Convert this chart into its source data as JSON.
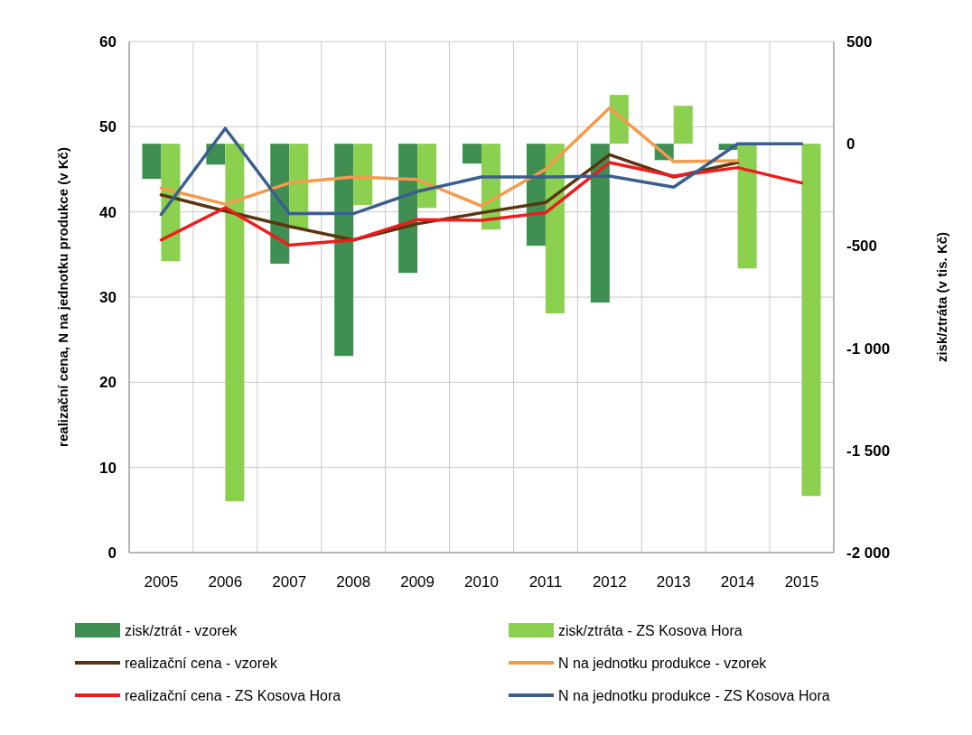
{
  "chart_data": {
    "type": "bar",
    "categories": [
      "2005",
      "2006",
      "2007",
      "2008",
      "2009",
      "2010",
      "2011",
      "2012",
      "2013",
      "2014",
      "2015"
    ],
    "ylabel": "realizační cena, N na jednotku produkce  (v Kč)",
    "y2label": "zisk/ztráta (v tis. Kč)",
    "ylim": [
      0,
      60
    ],
    "yticks": [
      0,
      10,
      20,
      30,
      40,
      50,
      60
    ],
    "y2lim": [
      -2000,
      500
    ],
    "y2ticks": [
      {
        "value": -2000,
        "label": "-2 000"
      },
      {
        "value": -1500,
        "label": "-1 500"
      },
      {
        "value": -1000,
        "label": "-1 000"
      },
      {
        "value": -500,
        "label": "-500"
      },
      0,
      500
    ],
    "grid": true,
    "legend": "bottom",
    "series": [
      {
        "name": "zisk/ztrát - vzorek",
        "axis": "y2",
        "color": "#3f8f52",
        "values": [
          -172,
          -102,
          -587,
          -1038,
          -632,
          -97,
          -499,
          -777,
          -80,
          -30,
          null
        ]
      },
      {
        "name": "zisk/ztráta - ZS Kosova  Hora",
        "axis": "y2",
        "color": "#8cd050",
        "values": [
          -574,
          -1749,
          -415,
          -300,
          -314,
          -420,
          -830,
          239,
          186,
          -610,
          -1723
        ]
      },
      {
        "name": "realizační cena - vzorek",
        "type": "line",
        "color": "#5a3510",
        "values": [
          42.0,
          40.1,
          38.3,
          36.7,
          38.6,
          39.9,
          41.1,
          46.7,
          44.1,
          45.8,
          null
        ]
      },
      {
        "name": "N na jednotku  produkce  - vzorek",
        "type": "line",
        "color": "#f59a4a",
        "values": [
          42.8,
          40.9,
          43.4,
          44.1,
          43.8,
          40.7,
          45.0,
          52.2,
          45.9,
          46.0,
          null
        ]
      },
      {
        "name": "realizační cena - ZS Kosova  Hora",
        "type": "line",
        "color": "#ee1c1c",
        "values": [
          36.7,
          40.5,
          36.1,
          36.7,
          39.1,
          39.0,
          39.9,
          45.8,
          44.2,
          45.2,
          43.4
        ]
      },
      {
        "name": "N na jednotku  produkce  - ZS Kosova  Hora",
        "type": "line",
        "color": "#3a5f8f",
        "values": [
          39.7,
          49.8,
          39.8,
          39.8,
          42.4,
          44.1,
          44.1,
          44.2,
          42.9,
          48.0,
          48.0
        ]
      }
    ]
  }
}
